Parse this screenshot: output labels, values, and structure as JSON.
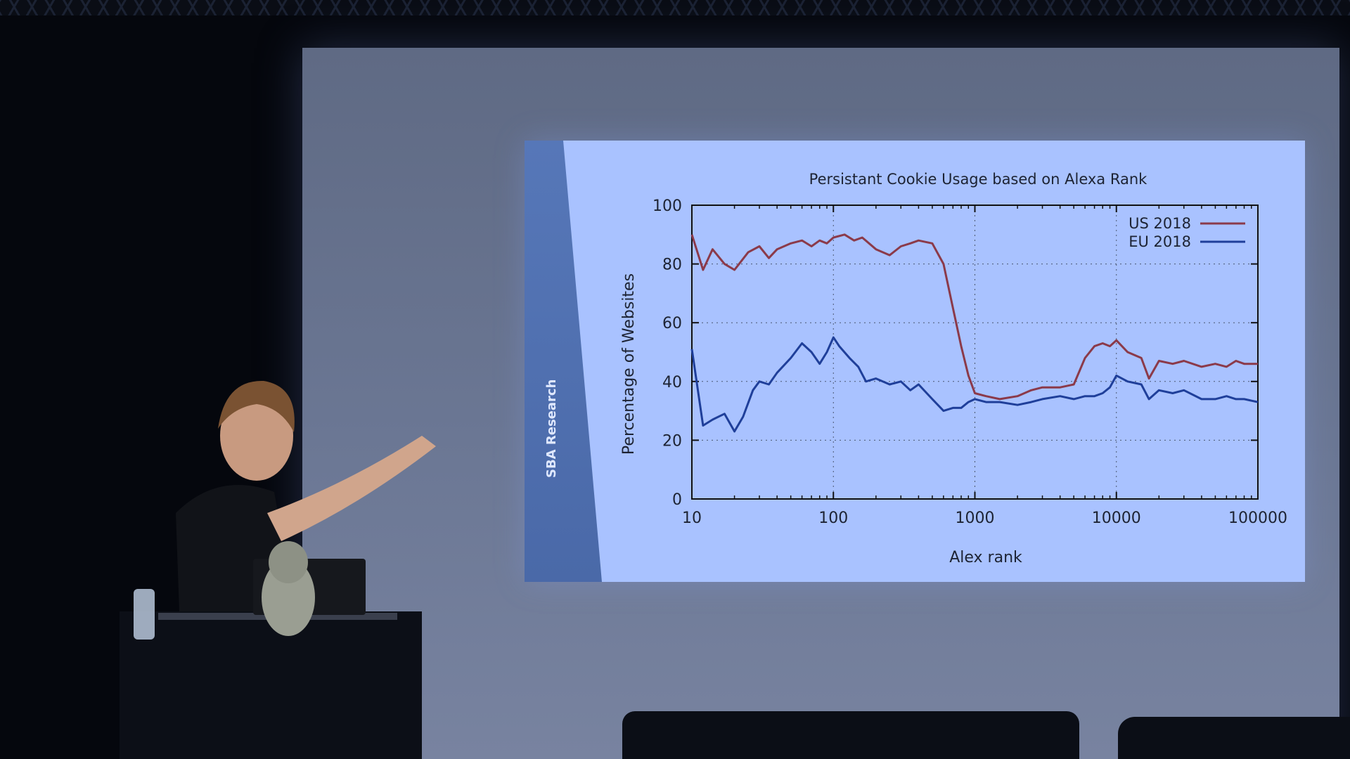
{
  "slide": {
    "brand_text": "SBA Research"
  },
  "colors": {
    "us_line": "#8b3a4a",
    "eu_line": "#1f3f9a",
    "slide_bg": "#a9c2ff"
  },
  "chart_data": {
    "type": "line",
    "title": "Persistant Cookie Usage based on Alexa Rank",
    "xlabel": "Alex rank",
    "ylabel": "Percentage of Websites",
    "xscale": "log",
    "xlim": [
      10,
      100000
    ],
    "ylim": [
      0,
      100
    ],
    "x_ticks": [
      "10",
      "100",
      "1000",
      "10000",
      "100000"
    ],
    "y_ticks": [
      "0",
      "20",
      "40",
      "60",
      "80",
      "100"
    ],
    "grid": true,
    "legend": "top-right",
    "series": [
      {
        "name": "US 2018",
        "color": "#8b3a4a",
        "x": [
          10,
          12,
          14,
          17,
          20,
          25,
          30,
          35,
          40,
          50,
          60,
          70,
          80,
          90,
          100,
          120,
          140,
          160,
          200,
          250,
          300,
          350,
          400,
          500,
          600,
          700,
          800,
          900,
          1000,
          1200,
          1500,
          2000,
          2500,
          3000,
          4000,
          5000,
          6000,
          7000,
          8000,
          9000,
          10000,
          12000,
          15000,
          17000,
          20000,
          25000,
          30000,
          40000,
          50000,
          60000,
          70000,
          80000,
          100000
        ],
        "y": [
          90,
          78,
          85,
          80,
          78,
          84,
          86,
          82,
          85,
          87,
          88,
          86,
          88,
          87,
          89,
          90,
          88,
          89,
          85,
          83,
          86,
          87,
          88,
          87,
          80,
          65,
          52,
          42,
          36,
          35,
          34,
          35,
          37,
          38,
          38,
          39,
          48,
          52,
          53,
          52,
          54,
          50,
          48,
          41,
          47,
          46,
          47,
          45,
          46,
          45,
          47,
          46,
          46
        ]
      },
      {
        "name": "EU 2018",
        "color": "#1f3f9a",
        "x": [
          10,
          12,
          14,
          17,
          20,
          23,
          27,
          30,
          35,
          40,
          50,
          60,
          70,
          80,
          90,
          100,
          110,
          130,
          150,
          170,
          200,
          250,
          300,
          350,
          400,
          500,
          600,
          700,
          800,
          900,
          1000,
          1200,
          1500,
          2000,
          2500,
          3000,
          4000,
          5000,
          6000,
          7000,
          8000,
          9000,
          10000,
          12000,
          15000,
          17000,
          20000,
          25000,
          30000,
          40000,
          50000,
          60000,
          70000,
          80000,
          100000
        ],
        "y": [
          51,
          25,
          27,
          29,
          23,
          28,
          37,
          40,
          39,
          43,
          48,
          53,
          50,
          46,
          50,
          55,
          52,
          48,
          45,
          40,
          41,
          39,
          40,
          37,
          39,
          34,
          30,
          31,
          31,
          33,
          34,
          33,
          33,
          32,
          33,
          34,
          35,
          34,
          35,
          35,
          36,
          38,
          42,
          40,
          39,
          34,
          37,
          36,
          37,
          34,
          34,
          35,
          34,
          34,
          33
        ]
      }
    ]
  }
}
